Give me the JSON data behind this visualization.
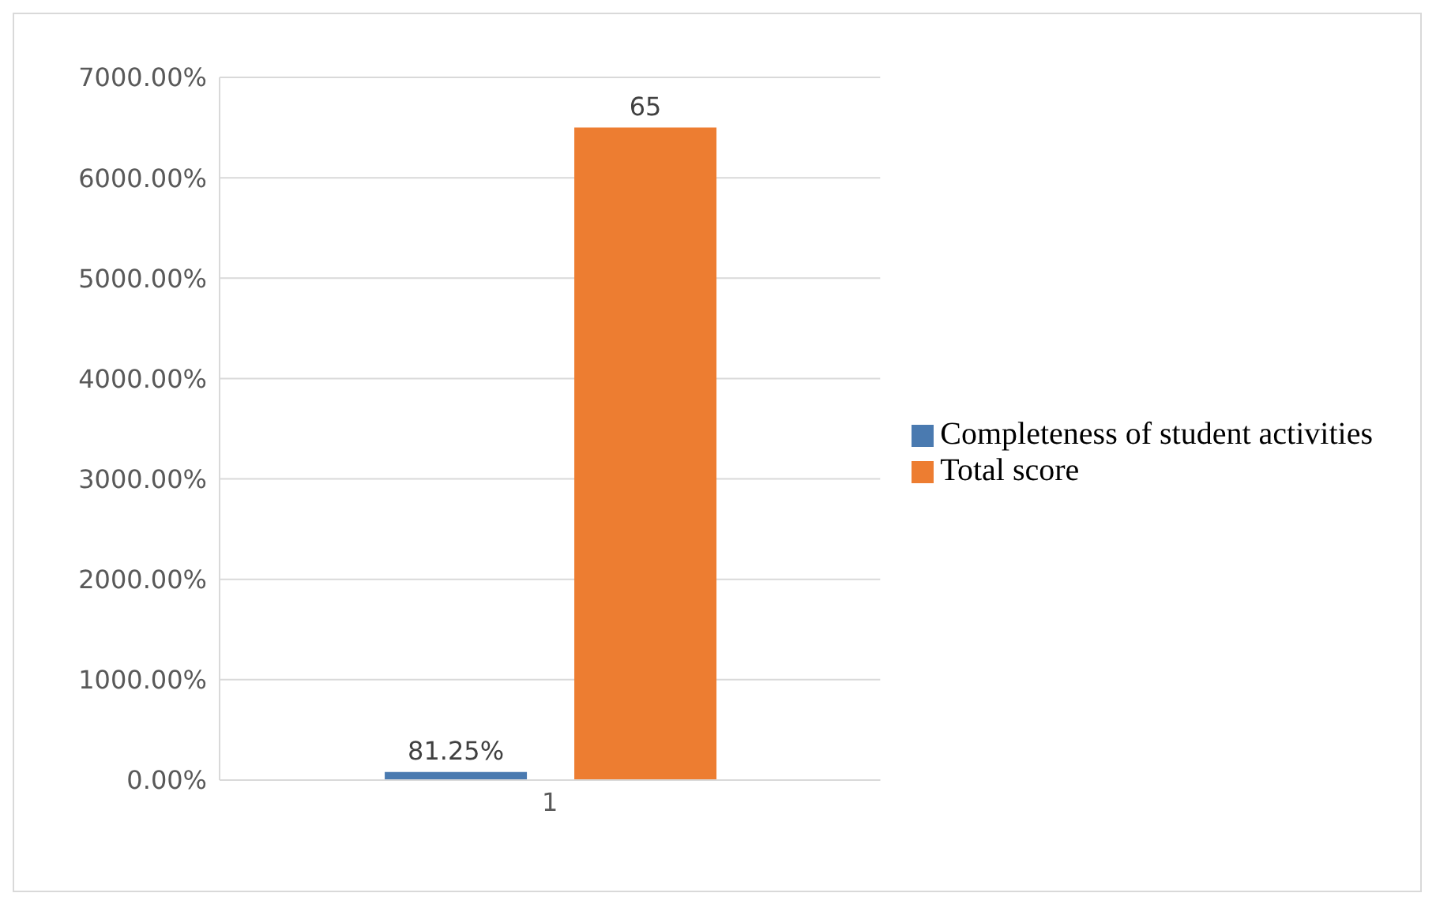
{
  "chart_data": {
    "type": "bar",
    "categories": [
      "1"
    ],
    "series": [
      {
        "name": "Completeness of student activities",
        "color": "#4a7ab0",
        "values": [
          0.8125
        ],
        "value_labels": [
          "81.25%"
        ]
      },
      {
        "name": "Total score",
        "color": "#ed7d31",
        "values": [
          65
        ],
        "value_labels": [
          "65"
        ]
      }
    ],
    "ylim": [
      0,
      70
    ],
    "yticks": [
      {
        "value": 0,
        "label": "0.00%"
      },
      {
        "value": 10,
        "label": "1000.00%"
      },
      {
        "value": 20,
        "label": "2000.00%"
      },
      {
        "value": 30,
        "label": "3000.00%"
      },
      {
        "value": 40,
        "label": "4000.00%"
      },
      {
        "value": 50,
        "label": "5000.00%"
      },
      {
        "value": 60,
        "label": "6000.00%"
      },
      {
        "value": 70,
        "label": "7000.00%"
      }
    ],
    "grid": "y",
    "legend": "right"
  }
}
